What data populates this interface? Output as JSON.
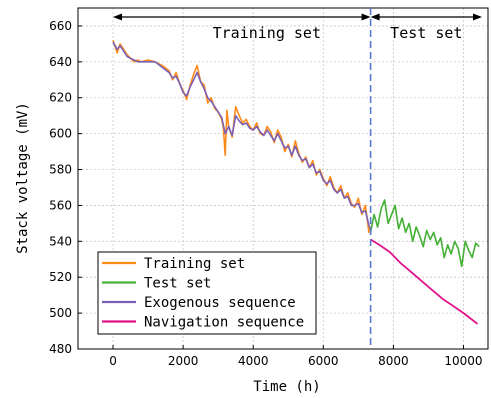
{
  "chart_data": {
    "type": "line",
    "xlabel": "Time (h)",
    "ylabel": "Stack voltage (mV)",
    "xlim": [
      -1000,
      10700
    ],
    "ylim": [
      480,
      670
    ],
    "xticks": [
      0,
      2000,
      4000,
      6000,
      8000,
      10000
    ],
    "yticks": [
      480,
      500,
      520,
      540,
      560,
      580,
      600,
      620,
      640,
      660
    ],
    "grid": true,
    "split_x": 7350,
    "annotations": {
      "left": "Training set",
      "right": "Test set"
    },
    "legend_position": "bottom-left",
    "colors": {
      "training": "#ff8c1a",
      "test": "#44b035",
      "exogenous": "#7b5fb5",
      "navigation": "#e0148c",
      "split": "#5a78d6"
    },
    "series": [
      {
        "name": "Training set",
        "x": [
          0,
          120,
          200,
          300,
          400,
          500,
          600,
          700,
          800,
          1000,
          1200,
          1400,
          1600,
          1700,
          1800,
          1900,
          2000,
          2100,
          2200,
          2300,
          2400,
          2500,
          2600,
          2700,
          2800,
          2900,
          3000,
          3100,
          3150,
          3200,
          3250,
          3300,
          3400,
          3500,
          3600,
          3700,
          3800,
          3900,
          4000,
          4100,
          4200,
          4300,
          4400,
          4500,
          4600,
          4700,
          4800,
          4900,
          5000,
          5100,
          5200,
          5300,
          5400,
          5500,
          5600,
          5700,
          5800,
          5900,
          6000,
          6100,
          6200,
          6300,
          6400,
          6500,
          6600,
          6700,
          6800,
          6900,
          7000,
          7100,
          7200,
          7300,
          7350
        ],
        "values": [
          652,
          645,
          650,
          647,
          644,
          642,
          640,
          641,
          640,
          641,
          640,
          638,
          635,
          630,
          634,
          628,
          624,
          619,
          627,
          633,
          638,
          629,
          627,
          617,
          620,
          614,
          612,
          608,
          603,
          588,
          613,
          604,
          598,
          615,
          610,
          606,
          608,
          604,
          602,
          606,
          600,
          599,
          604,
          601,
          595,
          602,
          598,
          590,
          594,
          587,
          596,
          589,
          584,
          587,
          581,
          585,
          577,
          580,
          575,
          571,
          576,
          570,
          567,
          571,
          564,
          567,
          561,
          559,
          564,
          555,
          560,
          545,
          548
        ]
      },
      {
        "name": "Test set",
        "x": [
          7350,
          7450,
          7550,
          7650,
          7750,
          7850,
          7950,
          8050,
          8150,
          8250,
          8350,
          8450,
          8550,
          8650,
          8750,
          8850,
          8950,
          9050,
          9150,
          9250,
          9350,
          9450,
          9550,
          9650,
          9750,
          9850,
          9950,
          10050,
          10150,
          10250,
          10350,
          10450
        ],
        "values": [
          545,
          555,
          548,
          558,
          563,
          550,
          555,
          560,
          547,
          553,
          545,
          550,
          540,
          548,
          543,
          537,
          546,
          541,
          545,
          538,
          542,
          531,
          538,
          533,
          540,
          536,
          526,
          540,
          535,
          531,
          539,
          537
        ]
      },
      {
        "name": "Exogenous sequence",
        "x": [
          0,
          120,
          200,
          300,
          400,
          500,
          600,
          700,
          800,
          1000,
          1200,
          1400,
          1600,
          1700,
          1800,
          1900,
          2000,
          2100,
          2200,
          2300,
          2400,
          2500,
          2600,
          2700,
          2800,
          2900,
          3000,
          3100,
          3200,
          3300,
          3400,
          3500,
          3600,
          3700,
          3800,
          3900,
          4000,
          4100,
          4200,
          4300,
          4400,
          4500,
          4600,
          4700,
          4800,
          4900,
          5000,
          5100,
          5200,
          5300,
          5400,
          5500,
          5600,
          5700,
          5800,
          5900,
          6000,
          6100,
          6200,
          6300,
          6400,
          6500,
          6600,
          6700,
          6800,
          6900,
          7000,
          7100,
          7200,
          7300,
          7350
        ],
        "values": [
          651,
          647,
          649,
          646,
          643,
          642,
          641,
          640,
          640,
          640,
          640,
          637,
          634,
          631,
          632,
          628,
          623,
          621,
          626,
          630,
          634,
          629,
          625,
          620,
          618,
          615,
          612,
          609,
          600,
          604,
          599,
          610,
          607,
          605,
          606,
          603,
          602,
          604,
          601,
          599,
          602,
          599,
          596,
          600,
          596,
          592,
          593,
          588,
          593,
          588,
          585,
          586,
          581,
          583,
          578,
          579,
          574,
          572,
          574,
          569,
          567,
          569,
          564,
          565,
          560,
          560,
          561,
          556,
          557,
          549,
          547
        ]
      },
      {
        "name": "Navigation sequence",
        "x": [
          7350,
          7600,
          7900,
          8200,
          8500,
          8800,
          9100,
          9400,
          9700,
          10000,
          10200,
          10400
        ],
        "values": [
          541,
          538,
          534,
          528,
          523,
          518,
          513,
          508,
          504,
          500,
          497,
          494
        ]
      }
    ]
  }
}
